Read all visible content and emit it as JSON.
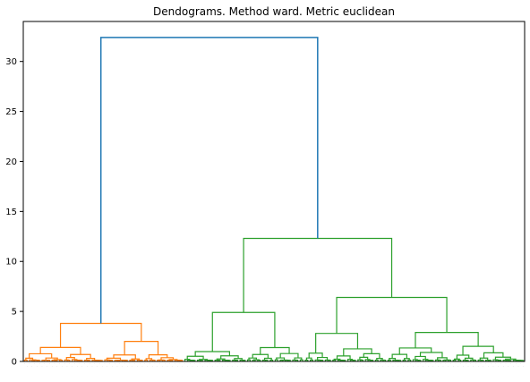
{
  "chart_data": {
    "type": "dendrogram",
    "title": "Dendograms. Method ward. Metric euclidean",
    "xlabel": "",
    "ylabel": "",
    "ylim": [
      0,
      34
    ],
    "yticks": [
      0,
      5,
      10,
      15,
      20,
      25,
      30
    ],
    "ytick_labels": [
      "0",
      "5",
      "10",
      "15",
      "20",
      "25",
      "30"
    ],
    "grid": false,
    "legend": "none",
    "leaf_count": 200,
    "colors": {
      "root": "#1f77b4",
      "cluster1": "#ff7f0e",
      "cluster2": "#2ca02c"
    },
    "merges": [
      {
        "height": 32.4,
        "color": "root",
        "children": [
          "cluster1",
          "cluster2"
        ]
      },
      {
        "height": 12.3,
        "color": "cluster2",
        "children": [
          "cluster2-a",
          "cluster2-b"
        ]
      },
      {
        "height": 6.4,
        "color": "cluster2",
        "children": [
          "cluster2-b1",
          "cluster2-b2"
        ]
      },
      {
        "height": 4.9,
        "color": "cluster2",
        "children": [
          "cluster2-a1",
          "cluster2-a2"
        ]
      },
      {
        "height": 3.8,
        "color": "cluster1",
        "children": [
          "cluster1-a",
          "cluster1-b"
        ]
      },
      {
        "height": 2.9,
        "color": "cluster2",
        "children": [
          "cluster2-b2a",
          "cluster2-b2b"
        ]
      },
      {
        "height": 2.8,
        "color": "cluster2",
        "children": [
          "cluster2-b1a",
          "cluster2-b1b"
        ]
      },
      {
        "height": 2.0,
        "color": "cluster1",
        "children": [
          "cluster1-b1",
          "cluster1-b2"
        ]
      },
      {
        "height": 1.4,
        "color": "cluster1",
        "children": [
          "cluster1-a1",
          "cluster1-a2"
        ]
      }
    ]
  }
}
